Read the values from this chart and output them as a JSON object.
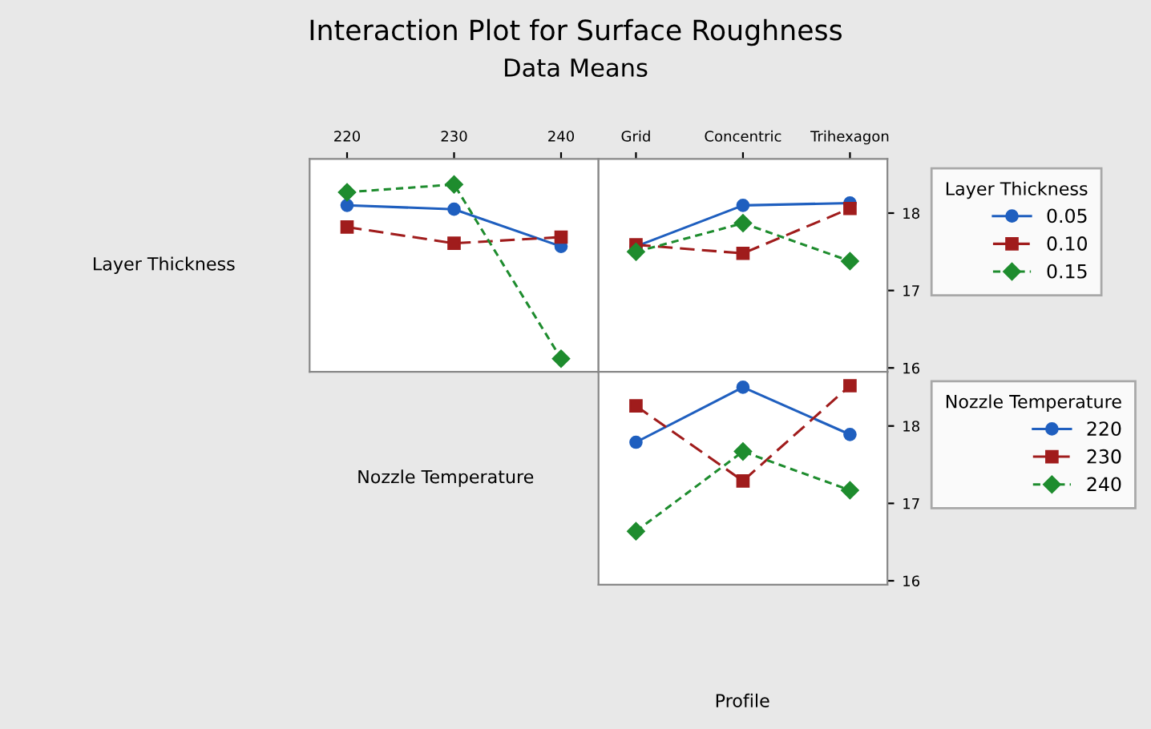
{
  "chart_data": [
    {
      "type": "line",
      "title": "Interaction Plot for Surface Roughness",
      "subtitle": "Data Means",
      "ylabel": "Layer Thickness",
      "categories": [
        "220",
        "230",
        "240"
      ],
      "ylim": [
        15.95,
        18.7
      ],
      "yticks": [
        16,
        17,
        18
      ],
      "tick_labels": "x",
      "grid": false,
      "legend": false,
      "series": [
        {
          "color": "#1f5fbf",
          "marker": "circle",
          "line_style": "solid",
          "values": [
            18.1,
            18.05,
            17.57
          ]
        },
        {
          "color": "#a01c1c",
          "marker": "square",
          "line_style": "dashed",
          "values": [
            17.82,
            17.61,
            17.69
          ]
        },
        {
          "color": "#1e8c2e",
          "marker": "diamond",
          "line_style": "dotted",
          "values": [
            18.27,
            18.37,
            16.12
          ]
        }
      ]
    },
    {
      "type": "line",
      "categories": [
        "Grid",
        "Concentric",
        "Trihexagon"
      ],
      "ylim": [
        15.95,
        18.7
      ],
      "yticks": [
        16,
        17,
        18
      ],
      "grid": false,
      "legend": "right",
      "legend_title": "Layer Thickness",
      "series": [
        {
          "name": "0.05",
          "color": "#1f5fbf",
          "marker": "circle",
          "line_style": "solid",
          "values": [
            17.57,
            18.1,
            18.13
          ]
        },
        {
          "name": "0.10",
          "color": "#a01c1c",
          "marker": "square",
          "line_style": "dashed",
          "values": [
            17.59,
            17.48,
            18.06
          ]
        },
        {
          "name": "0.15",
          "color": "#1e8c2e",
          "marker": "diamond",
          "line_style": "dotted",
          "values": [
            17.5,
            17.87,
            17.38
          ]
        }
      ]
    },
    {
      "type": "line",
      "categories": [
        null,
        null,
        null
      ],
      "ylabel": "Nozzle Temperature",
      "xlabel": "Profile",
      "ylim": [
        15.95,
        18.7
      ],
      "yticks": [
        16,
        17,
        18
      ],
      "tick_labels": "y",
      "grid": false,
      "legend": "right",
      "legend_title": "Nozzle Temperature",
      "series": [
        {
          "name": "220",
          "color": "#1f5fbf",
          "marker": "circle",
          "line_style": "solid",
          "values": [
            17.79,
            18.5,
            17.89
          ]
        },
        {
          "name": "230",
          "color": "#a01c1c",
          "marker": "square",
          "line_style": "dashed",
          "values": [
            18.26,
            17.29,
            18.52
          ]
        },
        {
          "name": "240",
          "color": "#1e8c2e",
          "marker": "diamond",
          "line_style": "dotted",
          "values": [
            16.64,
            17.67,
            17.17
          ]
        }
      ]
    }
  ]
}
